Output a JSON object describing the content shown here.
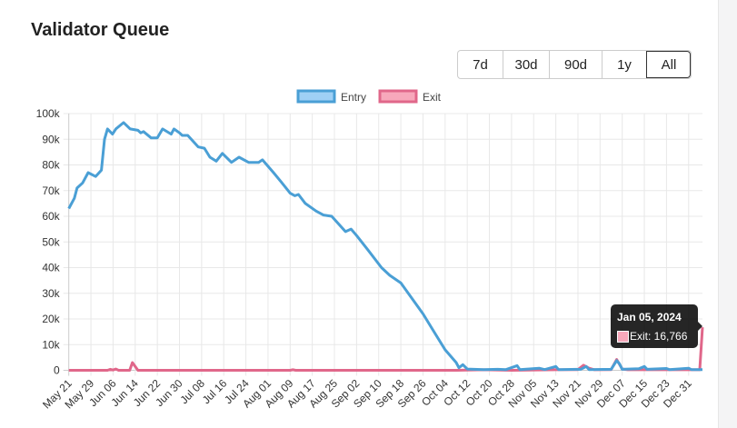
{
  "title": "Validator Queue",
  "range_buttons": [
    {
      "label": "7d",
      "selected": false
    },
    {
      "label": "30d",
      "selected": false
    },
    {
      "label": "90d",
      "selected": false
    },
    {
      "label": "1y",
      "selected": false
    },
    {
      "label": "All",
      "selected": true
    }
  ],
  "tooltip": {
    "date": "Jan 05, 2024",
    "text": "Exit: 16,766"
  },
  "chart_data": {
    "type": "line",
    "title": "Validator Queue",
    "x_start": "2023-05-21",
    "x_end": "2024-01-05",
    "x_unit": "days since start",
    "xlim": [
      0,
      229
    ],
    "ylim": [
      0,
      100000
    ],
    "grid": true,
    "legend_position": "top",
    "x_tick_labels": [
      "May 21",
      "May 29",
      "Jun 06",
      "Jun 14",
      "Jun 22",
      "Jun 30",
      "Jul 08",
      "Jul 16",
      "Jul 24",
      "Aug 01",
      "Aug 09",
      "Aug 17",
      "Aug 25",
      "Sep 02",
      "Sep 10",
      "Sep 18",
      "Sep 26",
      "Oct 04",
      "Oct 12",
      "Oct 20",
      "Oct 28",
      "Nov 05",
      "Nov 13",
      "Nov 21",
      "Nov 29",
      "Dec 07",
      "Dec 15",
      "Dec 23",
      "Dec 31"
    ],
    "y_tick_labels": [
      "0",
      "10k",
      "20k",
      "30k",
      "40k",
      "50k",
      "60k",
      "70k",
      "80k",
      "90k",
      "100k"
    ],
    "series": [
      {
        "name": "Entry",
        "color": "#4a9fd5",
        "fill": "#9fd0f5",
        "points": [
          [
            0,
            63000
          ],
          [
            2,
            67000
          ],
          [
            3,
            71000
          ],
          [
            5,
            73000
          ],
          [
            7,
            77000
          ],
          [
            9.7,
            75500
          ],
          [
            11.8,
            78000
          ],
          [
            12.9,
            90000
          ],
          [
            14,
            94000
          ],
          [
            15.8,
            92000
          ],
          [
            17,
            94000
          ],
          [
            19.8,
            96500
          ],
          [
            22.2,
            94000
          ],
          [
            25,
            93500
          ],
          [
            26,
            92500
          ],
          [
            27,
            93000
          ],
          [
            29.8,
            90500
          ],
          [
            32,
            90500
          ],
          [
            33.9,
            94000
          ],
          [
            37,
            92000
          ],
          [
            38,
            94000
          ],
          [
            40,
            92500
          ],
          [
            41,
            91500
          ],
          [
            43,
            91500
          ],
          [
            46.8,
            87000
          ],
          [
            49,
            86500
          ],
          [
            51,
            83000
          ],
          [
            53.3,
            81500
          ],
          [
            55.5,
            84500
          ],
          [
            58.8,
            81000
          ],
          [
            61.5,
            83000
          ],
          [
            65,
            81000
          ],
          [
            68.6,
            81000
          ],
          [
            70,
            82000
          ],
          [
            74,
            77000
          ],
          [
            76.7,
            73500
          ],
          [
            80,
            69000
          ],
          [
            81.7,
            68000
          ],
          [
            83,
            68500
          ],
          [
            85.5,
            65000
          ],
          [
            89.4,
            62000
          ],
          [
            92,
            60500
          ],
          [
            95,
            60000
          ],
          [
            100,
            54000
          ],
          [
            102,
            55000
          ],
          [
            104,
            52500
          ],
          [
            108,
            47000
          ],
          [
            113,
            40000
          ],
          [
            116,
            37000
          ],
          [
            120,
            34000
          ],
          [
            124,
            28000
          ],
          [
            128,
            22000
          ],
          [
            132,
            15000
          ],
          [
            136,
            8000
          ],
          [
            140,
            3000
          ],
          [
            141,
            1000
          ],
          [
            142.4,
            2200
          ],
          [
            144,
            500
          ],
          [
            150,
            300
          ],
          [
            155,
            400
          ],
          [
            158,
            300
          ],
          [
            162,
            1800
          ],
          [
            163,
            300
          ],
          [
            170,
            800
          ],
          [
            172,
            300
          ],
          [
            176,
            1500
          ],
          [
            177,
            300
          ],
          [
            185,
            400
          ],
          [
            187,
            1500
          ],
          [
            188,
            300
          ],
          [
            196,
            400
          ],
          [
            198,
            3800
          ],
          [
            199,
            2500
          ],
          [
            200,
            400
          ],
          [
            206,
            600
          ],
          [
            208,
            1500
          ],
          [
            209,
            400
          ],
          [
            216,
            700
          ],
          [
            217,
            300
          ],
          [
            224,
            800
          ],
          [
            225,
            300
          ],
          [
            229,
            300
          ]
        ]
      },
      {
        "name": "Exit",
        "color": "#e0678a",
        "fill": "#f7a8bb",
        "points": [
          [
            0,
            0
          ],
          [
            14,
            0
          ],
          [
            15,
            400
          ],
          [
            16,
            100
          ],
          [
            17,
            500
          ],
          [
            18,
            0
          ],
          [
            22,
            0
          ],
          [
            23,
            3000
          ],
          [
            25,
            0
          ],
          [
            80,
            0
          ],
          [
            81,
            200
          ],
          [
            82,
            0
          ],
          [
            140,
            0
          ],
          [
            150,
            200
          ],
          [
            160,
            0
          ],
          [
            176,
            200
          ],
          [
            184,
            300
          ],
          [
            186,
            2000
          ],
          [
            188,
            800
          ],
          [
            190,
            200
          ],
          [
            196,
            300
          ],
          [
            198,
            4200
          ],
          [
            200,
            500
          ],
          [
            202,
            200
          ],
          [
            228,
            200
          ],
          [
            229,
            16766
          ]
        ]
      }
    ]
  }
}
